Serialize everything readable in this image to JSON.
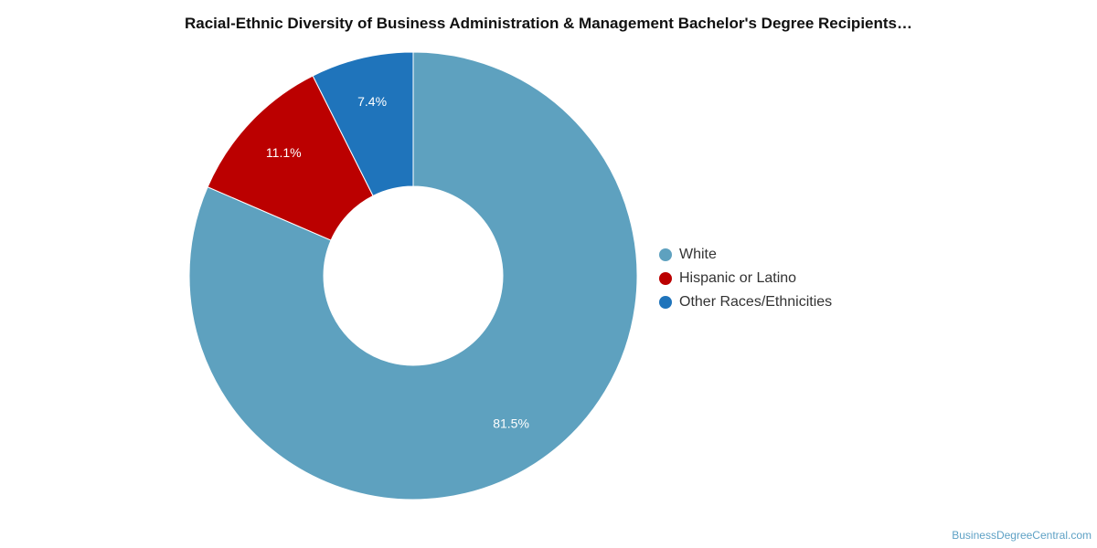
{
  "chart_data": {
    "type": "pie",
    "title": "Racial-Ethnic Diversity of Business Administration & Management Bachelor's Degree Recipients…",
    "categories": [
      "White",
      "Hispanic or Latino",
      "Other Races/Ethnicities"
    ],
    "values": [
      81.5,
      11.1,
      7.4
    ],
    "data_labels": [
      "81.5%",
      "11.1%",
      "7.4%"
    ],
    "colors": [
      "#5ea1bf",
      "#bb0000",
      "#1f74bb"
    ],
    "donut": true,
    "legend_position": "right"
  },
  "credit": {
    "text": "BusinessDegreeCentral.com"
  }
}
